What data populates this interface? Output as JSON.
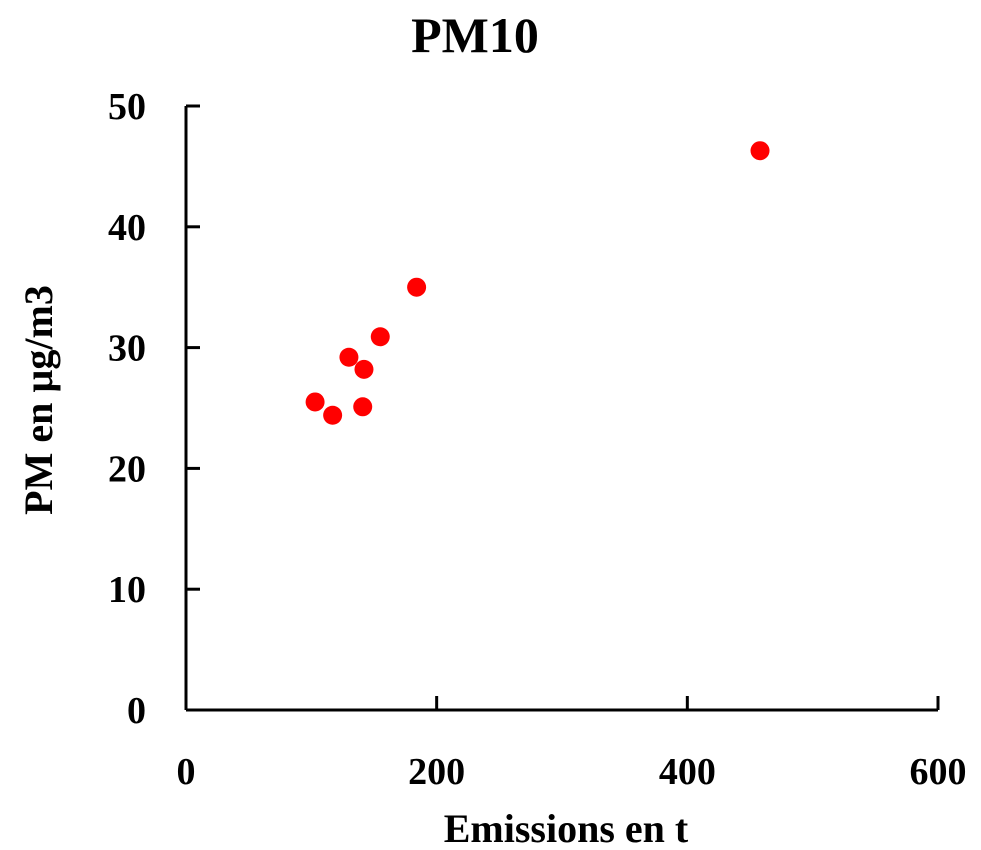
{
  "chart_data": {
    "type": "scatter",
    "title": "PM10",
    "xlabel": "Emissions en t",
    "ylabel": "PM en µg/m3",
    "xlim": [
      0,
      600
    ],
    "ylim": [
      0,
      50
    ],
    "xticks": [
      "0",
      "200",
      "400",
      "600"
    ],
    "yticks": [
      "0",
      "10",
      "20",
      "30",
      "40",
      "50"
    ],
    "grid": false,
    "legend": "none",
    "marker_color": "#ff0000",
    "points": [
      {
        "x": 103,
        "y": 25.5
      },
      {
        "x": 117,
        "y": 24.4
      },
      {
        "x": 130,
        "y": 29.2
      },
      {
        "x": 141,
        "y": 25.1
      },
      {
        "x": 142,
        "y": 28.2
      },
      {
        "x": 155,
        "y": 30.9
      },
      {
        "x": 184,
        "y": 35.0
      },
      {
        "x": 458,
        "y": 46.3
      }
    ]
  }
}
